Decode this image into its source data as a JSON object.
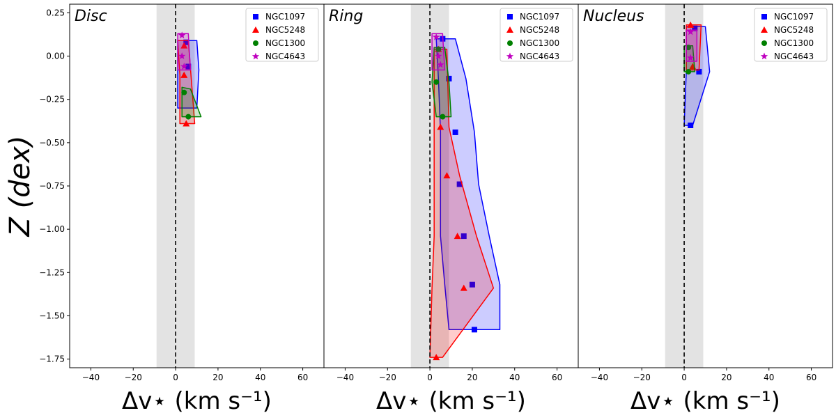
{
  "chart_data": [
    {
      "type": "line",
      "title": "Disc",
      "xlabel": "Δv⋆ (km s⁻¹)",
      "ylabel": "Z (dex)",
      "xlim": [
        -50,
        70
      ],
      "ylim": [
        -1.8,
        0.3
      ],
      "xticks": [
        "−40",
        "−20",
        "0",
        "20",
        "40",
        "60"
      ],
      "yticks": [
        "0.25",
        "0.00",
        "−0.25",
        "−0.50",
        "−0.75",
        "−1.00",
        "−1.25",
        "−1.50",
        "−1.75"
      ],
      "shaded_band": [
        -9,
        9
      ],
      "zero_line": 0,
      "legend_position": "top-right",
      "series": [
        {
          "name": "NGC1097",
          "color": "#0000ff",
          "marker": "square",
          "points": [
            [
              5,
              0.08
            ],
            [
              6,
              -0.06
            ]
          ],
          "band": [
            [
              1,
              0.09
            ],
            [
              10,
              0.09
            ],
            [
              11,
              -0.08
            ],
            [
              10,
              -0.3
            ],
            [
              1,
              -0.3
            ],
            [
              1,
              -0.06
            ]
          ]
        },
        {
          "name": "NGC5248",
          "color": "#ff0000",
          "marker": "triangle",
          "points": [
            [
              4,
              0.06
            ],
            [
              4,
              -0.11
            ],
            [
              5,
              -0.39
            ]
          ],
          "band": [
            [
              1,
              0.09
            ],
            [
              6,
              0.09
            ],
            [
              9,
              -0.39
            ],
            [
              2,
              -0.39
            ],
            [
              2,
              -0.11
            ]
          ]
        },
        {
          "name": "NGC1300",
          "color": "#008000",
          "marker": "circle",
          "points": [
            [
              4,
              -0.21
            ],
            [
              6,
              -0.35
            ]
          ],
          "band": [
            [
              3,
              -0.18
            ],
            [
              7,
              -0.19
            ],
            [
              12,
              -0.35
            ],
            [
              3,
              -0.35
            ]
          ]
        },
        {
          "name": "NGC4643",
          "color": "#bf00bf",
          "marker": "star",
          "points": [
            [
              3,
              0.12
            ],
            [
              3,
              0.0
            ],
            [
              4,
              -0.06
            ]
          ],
          "band": [
            [
              1,
              0.13
            ],
            [
              6,
              0.13
            ],
            [
              7,
              -0.08
            ],
            [
              1,
              -0.08
            ]
          ]
        }
      ]
    },
    {
      "type": "line",
      "title": "Ring",
      "xlabel": "Δv⋆ (km s⁻¹)",
      "ylabel": "",
      "xlim": [
        -50,
        70
      ],
      "ylim": [
        -1.8,
        0.3
      ],
      "xticks": [
        "−40",
        "−20",
        "0",
        "20",
        "40",
        "60"
      ],
      "yticks": [],
      "shaded_band": [
        -9,
        9
      ],
      "zero_line": 0,
      "legend_position": "top-right",
      "series": [
        {
          "name": "NGC1097",
          "color": "#0000ff",
          "marker": "square",
          "points": [
            [
              6,
              0.1
            ],
            [
              9,
              -0.13
            ],
            [
              12,
              -0.44
            ],
            [
              14,
              -0.74
            ],
            [
              16,
              -1.04
            ],
            [
              20,
              -1.32
            ],
            [
              21,
              -1.58
            ]
          ],
          "band": [
            [
              3,
              0.1
            ],
            [
              12,
              0.1
            ],
            [
              17,
              -0.13
            ],
            [
              21,
              -0.44
            ],
            [
              23,
              -0.74
            ],
            [
              28,
              -1.04
            ],
            [
              33,
              -1.32
            ],
            [
              33,
              -1.58
            ],
            [
              9,
              -1.58
            ],
            [
              7,
              -1.32
            ],
            [
              5,
              -1.04
            ],
            [
              5,
              -0.74
            ],
            [
              5,
              -0.44
            ],
            [
              4,
              -0.13
            ]
          ]
        },
        {
          "name": "NGC5248",
          "color": "#ff0000",
          "marker": "triangle",
          "points": [
            [
              4,
              0.04
            ],
            [
              5,
              -0.41
            ],
            [
              8,
              -0.69
            ],
            [
              13,
              -1.04
            ],
            [
              16,
              -1.34
            ],
            [
              3,
              -1.74
            ]
          ],
          "band": [
            [
              2,
              0.04
            ],
            [
              8,
              0.04
            ],
            [
              9,
              -0.41
            ],
            [
              14,
              -0.69
            ],
            [
              22,
              -1.04
            ],
            [
              30,
              -1.34
            ],
            [
              6,
              -1.74
            ],
            [
              0,
              -1.74
            ],
            [
              1,
              -1.34
            ],
            [
              2,
              -1.04
            ],
            [
              2,
              -0.69
            ],
            [
              2,
              -0.41
            ]
          ]
        },
        {
          "name": "NGC1300",
          "color": "#008000",
          "marker": "circle",
          "points": [
            [
              4,
              0.04
            ],
            [
              3,
              -0.15
            ],
            [
              6,
              -0.35
            ]
          ],
          "band": [
            [
              2,
              0.05
            ],
            [
              7,
              0.05
            ],
            [
              9,
              -0.15
            ],
            [
              10,
              -0.35
            ],
            [
              3,
              -0.35
            ],
            [
              1,
              -0.15
            ]
          ]
        },
        {
          "name": "NGC4643",
          "color": "#bf00bf",
          "marker": "star",
          "points": [
            [
              3,
              0.11
            ],
            [
              4,
              0.0
            ],
            [
              5,
              -0.05
            ]
          ],
          "band": [
            [
              1,
              0.13
            ],
            [
              6,
              0.13
            ],
            [
              7,
              -0.08
            ],
            [
              1,
              -0.08
            ]
          ]
        }
      ]
    },
    {
      "type": "line",
      "title": "Nucleus",
      "xlabel": "Δv⋆ (km s⁻¹)",
      "ylabel": "",
      "xlim": [
        -50,
        70
      ],
      "ylim": [
        -1.8,
        0.3
      ],
      "xticks": [
        "−40",
        "−20",
        "0",
        "20",
        "40",
        "60"
      ],
      "yticks": [],
      "shaded_band": [
        -9,
        9
      ],
      "zero_line": 0,
      "legend_position": "top-right",
      "series": [
        {
          "name": "NGC1097",
          "color": "#0000ff",
          "marker": "square",
          "points": [
            [
              5,
              0.16
            ],
            [
              7,
              -0.09
            ],
            [
              3,
              -0.4
            ]
          ],
          "band": [
            [
              1,
              0.17
            ],
            [
              10,
              0.17
            ],
            [
              12,
              -0.09
            ],
            [
              4,
              -0.4
            ],
            [
              0,
              -0.4
            ],
            [
              1,
              -0.09
            ]
          ]
        },
        {
          "name": "NGC5248",
          "color": "#ff0000",
          "marker": "triangle",
          "points": [
            [
              3,
              0.18
            ],
            [
              4,
              -0.06
            ]
          ],
          "band": [
            [
              1,
              0.18
            ],
            [
              8,
              0.18
            ],
            [
              7,
              -0.08
            ],
            [
              1,
              -0.08
            ]
          ]
        },
        {
          "name": "NGC1300",
          "color": "#008000",
          "marker": "circle",
          "points": [
            [
              2,
              0.05
            ],
            [
              2,
              -0.09
            ]
          ],
          "band": [
            [
              0,
              0.06
            ],
            [
              4,
              0.06
            ],
            [
              5,
              -0.09
            ],
            [
              0,
              -0.09
            ]
          ]
        },
        {
          "name": "NGC4643",
          "color": "#bf00bf",
          "marker": "star",
          "points": [
            [
              3,
              0.14
            ],
            [
              3,
              -0.01
            ]
          ],
          "band": [
            [
              1,
              0.15
            ],
            [
              6,
              0.15
            ],
            [
              6,
              -0.03
            ],
            [
              1,
              -0.03
            ]
          ]
        }
      ]
    }
  ]
}
